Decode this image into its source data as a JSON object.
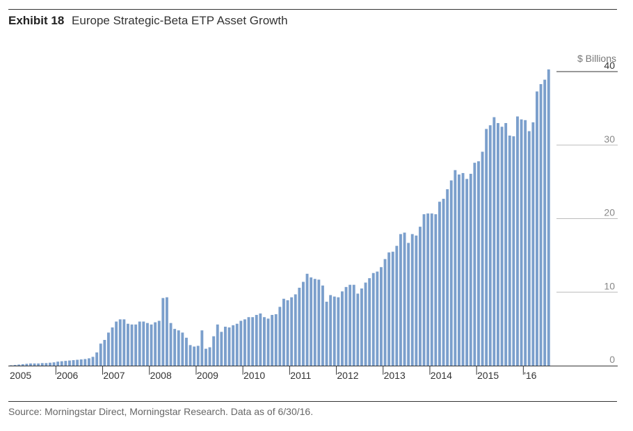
{
  "exhibit_label": "Exhibit 18",
  "title": "Europe Strategic-Beta ETP Asset Growth",
  "source": "Source: Morningstar Direct, Morningstar Research. Data as of 6/30/16.",
  "chart_data": {
    "type": "bar",
    "title": "Europe Strategic-Beta ETP Asset Growth",
    "ylabel": "$ Billions",
    "ylim": [
      0,
      40
    ],
    "yticks": [
      0,
      10,
      20,
      30,
      40
    ],
    "x_tick_labels": [
      "2005",
      "2006",
      "2007",
      "2008",
      "2009",
      "2010",
      "2011",
      "2012",
      "2013",
      "2014",
      "2015",
      "'16"
    ],
    "grid": true,
    "bar_color": "#7b9fcc",
    "period": "monthly",
    "values": [
      0.05,
      0.1,
      0.15,
      0.2,
      0.25,
      0.3,
      0.3,
      0.3,
      0.35,
      0.35,
      0.4,
      0.45,
      0.55,
      0.6,
      0.65,
      0.7,
      0.75,
      0.8,
      0.85,
      0.9,
      1.0,
      1.2,
      1.8,
      3.0,
      3.5,
      4.5,
      5.2,
      6.0,
      6.3,
      6.3,
      5.7,
      5.6,
      5.6,
      6.0,
      6.0,
      5.8,
      5.6,
      5.9,
      6.1,
      9.2,
      9.3,
      5.8,
      5.0,
      4.8,
      4.5,
      3.8,
      2.8,
      2.6,
      2.7,
      4.8,
      2.3,
      2.5,
      4.0,
      5.6,
      4.6,
      5.3,
      5.2,
      5.5,
      5.7,
      6.1,
      6.3,
      6.6,
      6.6,
      6.9,
      7.1,
      6.6,
      6.4,
      6.9,
      7.0,
      8.0,
      9.1,
      8.9,
      9.3,
      9.7,
      10.6,
      11.4,
      12.5,
      12.0,
      11.8,
      11.7,
      10.9,
      8.7,
      9.6,
      9.4,
      9.3,
      10.1,
      10.7,
      11.0,
      11.0,
      9.8,
      10.5,
      11.3,
      11.9,
      12.6,
      12.8,
      13.4,
      14.5,
      15.4,
      15.5,
      16.3,
      17.9,
      18.1,
      16.7,
      17.9,
      17.7,
      18.9,
      20.6,
      20.7,
      20.7,
      20.6,
      22.3,
      22.7,
      24.0,
      25.2,
      26.6,
      26.0,
      26.2,
      25.4,
      26.1,
      27.6,
      27.8,
      29.1,
      32.2,
      32.7,
      33.8,
      33.0,
      32.5,
      33.0,
      31.3,
      31.2,
      33.9,
      33.5,
      33.4,
      31.9,
      33.1,
      37.3,
      38.3,
      38.9,
      40.3
    ]
  }
}
